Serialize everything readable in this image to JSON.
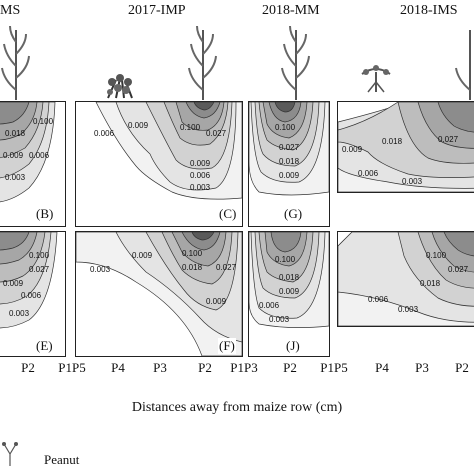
{
  "chart_data": {
    "type": "contour",
    "headers": [
      "MS",
      "2017-IMP",
      "2018-MM",
      "2018-IMS"
    ],
    "panel_letters": [
      "(B)",
      "(C)",
      "(G)",
      "(E)",
      "(F)",
      "(J)"
    ],
    "contour_levels": [
      0.1,
      0.027,
      0.018,
      0.009,
      0.006,
      0.003
    ],
    "contour_labels": [
      "0.100",
      "0.027",
      "0.018",
      "0.009",
      "0.006",
      "0.003"
    ],
    "x_ticks": [
      "P2",
      "P1P5",
      "P4",
      "P3",
      "P2",
      "P1P3",
      "P2",
      "P1P5",
      "P4",
      "P3",
      "P2"
    ],
    "xlabel": "Distances away from maize row (cm)",
    "legend": [
      "Peanut"
    ],
    "colors": {
      "fills": [
        "#f2f2f2",
        "#e4e4e4",
        "#d2d2d2",
        "#bdbdbd",
        "#a6a6a6",
        "#8c8c8c",
        "#5a5a5a"
      ]
    }
  }
}
